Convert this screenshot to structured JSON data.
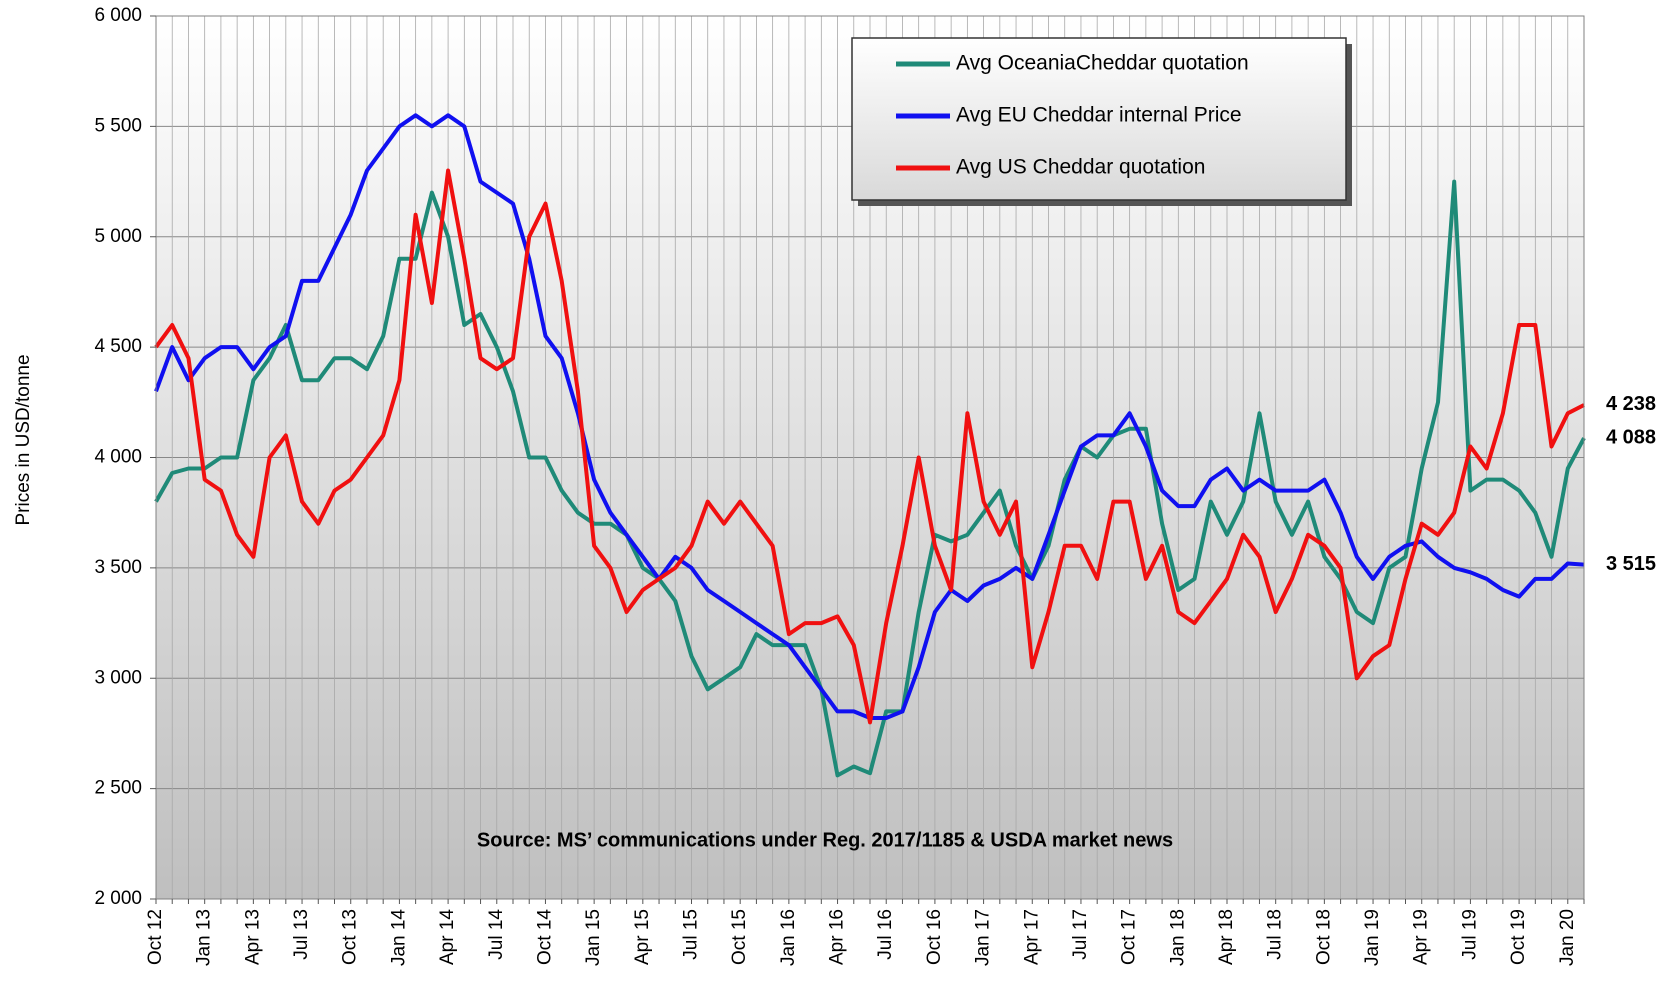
{
  "chart_data": {
    "type": "line",
    "y_label": "Prices in USD/tonne",
    "annotation": "Source: MS’ communications under Reg. 2017/1185  & USDA market news",
    "categories": [
      "Oct 12",
      null,
      null,
      "Jan 13",
      null,
      null,
      "Apr 13",
      null,
      null,
      "Jul 13",
      null,
      null,
      "Oct 13",
      null,
      null,
      "Jan 14",
      null,
      null,
      "Apr 14",
      null,
      null,
      "Jul 14",
      null,
      null,
      "Oct 14",
      null,
      null,
      "Jan 15",
      null,
      null,
      "Apr 15",
      null,
      null,
      "Jul 15",
      null,
      null,
      "Oct 15",
      null,
      null,
      "Jan 16",
      null,
      null,
      "Apr 16",
      null,
      null,
      "Jul 16",
      null,
      null,
      "Oct 16",
      null,
      null,
      "Jan 17",
      null,
      null,
      "Apr 17",
      null,
      null,
      "Jul 17",
      null,
      null,
      "Oct 17",
      null,
      null,
      "Jan 18",
      null,
      null,
      "Apr 18",
      null,
      null,
      "Jul 18",
      null,
      null,
      "Oct 18",
      null,
      null,
      "Jan 19",
      null,
      null,
      "Apr 19",
      null,
      null,
      "Jul 19",
      null,
      null,
      "Oct 19",
      null,
      null,
      "Jan 20",
      null
    ],
    "series": [
      {
        "name": "Avg OceaniaCheddar quotation",
        "color": "#1f8a78",
        "label_color": "#3aa03a",
        "last_label": "4 088",
        "values": [
          3800,
          3930,
          3950,
          3950,
          4000,
          4000,
          4350,
          4450,
          4600,
          4350,
          4350,
          4450,
          4450,
          4400,
          4550,
          4900,
          4900,
          5200,
          5000,
          4600,
          4650,
          4500,
          4300,
          4000,
          4000,
          3850,
          3750,
          3700,
          3700,
          3650,
          3500,
          3450,
          3350,
          3100,
          2950,
          3000,
          3050,
          3200,
          3150,
          3150,
          3150,
          2950,
          2560,
          2600,
          2570,
          2850,
          2850,
          3300,
          3650,
          3620,
          3650,
          3750,
          3850,
          3600,
          3450,
          3600,
          3900,
          4050,
          4000,
          4100,
          4130,
          4130,
          3700,
          3400,
          3450,
          3800,
          3650,
          3800,
          4200,
          3800,
          3650,
          3800,
          3550,
          3450,
          3300,
          3250,
          3500,
          3550,
          3950,
          4250,
          5250,
          3850,
          3900,
          3900,
          3850,
          3750,
          3550,
          3950,
          4088
        ]
      },
      {
        "name": "Avg EU Cheddar internal Price",
        "color": "#1010f0",
        "label_color": "#1010f0",
        "last_label": "3 515",
        "values": [
          4300,
          4500,
          4350,
          4450,
          4500,
          4500,
          4400,
          4500,
          4550,
          4800,
          4800,
          4950,
          5100,
          5300,
          5400,
          5500,
          5550,
          5500,
          5550,
          5500,
          5250,
          5200,
          5150,
          4900,
          4550,
          4450,
          4200,
          3900,
          3750,
          3650,
          3550,
          3450,
          3550,
          3500,
          3400,
          3350,
          3300,
          3250,
          3200,
          3150,
          3050,
          2950,
          2850,
          2850,
          2820,
          2820,
          2850,
          3050,
          3300,
          3400,
          3350,
          3420,
          3450,
          3500,
          3450,
          3650,
          3850,
          4050,
          4100,
          4100,
          4200,
          4050,
          3850,
          3780,
          3780,
          3900,
          3950,
          3850,
          3900,
          3850,
          3850,
          3850,
          3900,
          3750,
          3550,
          3450,
          3550,
          3600,
          3620,
          3550,
          3500,
          3480,
          3450,
          3400,
          3370,
          3450,
          3450,
          3520,
          3515
        ]
      },
      {
        "name": "Avg US Cheddar quotation",
        "color": "#f01010",
        "label_color": "#f01010",
        "last_label": "4 238",
        "values": [
          4500,
          4600,
          4450,
          3900,
          3850,
          3650,
          3550,
          4000,
          4100,
          3800,
          3700,
          3850,
          3900,
          4000,
          4100,
          4350,
          5100,
          4700,
          5300,
          4900,
          4450,
          4400,
          4450,
          5000,
          5150,
          4800,
          4300,
          3600,
          3500,
          3300,
          3400,
          3450,
          3500,
          3600,
          3800,
          3700,
          3800,
          3700,
          3600,
          3200,
          3250,
          3250,
          3280,
          3150,
          2800,
          3250,
          3600,
          4000,
          3600,
          3400,
          4200,
          3800,
          3650,
          3800,
          3050,
          3300,
          3600,
          3600,
          3450,
          3800,
          3800,
          3450,
          3600,
          3300,
          3250,
          3350,
          3450,
          3650,
          3550,
          3300,
          3450,
          3650,
          3600,
          3500,
          3000,
          3100,
          3150,
          3450,
          3700,
          3650,
          3750,
          4050,
          3950,
          4200,
          4600,
          4600,
          4050,
          4200,
          4238
        ]
      }
    ],
    "ylim": [
      2000,
      6000
    ],
    "yticks": [
      {
        "value": 2000,
        "label": "2 000"
      },
      {
        "value": 2500,
        "label": "2 500"
      },
      {
        "value": 3000,
        "label": "3 000"
      },
      {
        "value": 3500,
        "label": "3 500"
      },
      {
        "value": 4000,
        "label": "4 000"
      },
      {
        "value": 4500,
        "label": "4 500"
      },
      {
        "value": 5000,
        "label": "5 000"
      },
      {
        "value": 5500,
        "label": "5 500"
      },
      {
        "value": 6000,
        "label": "6 000"
      }
    ],
    "grid": true
  }
}
